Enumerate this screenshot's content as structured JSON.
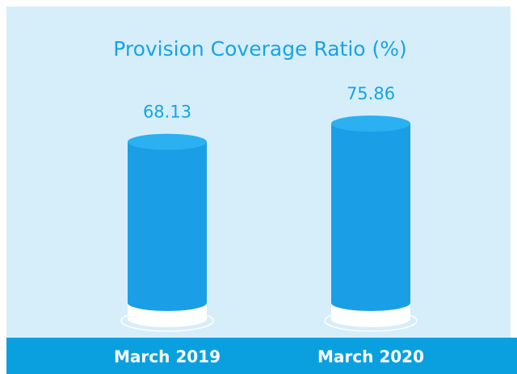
{
  "chart_data": {
    "type": "bar",
    "title": "Provision Coverage Ratio (%)",
    "categories": [
      "March 2019",
      "March 2020"
    ],
    "values": [
      68.13,
      75.86
    ],
    "color": "#1a9fe6"
  }
}
